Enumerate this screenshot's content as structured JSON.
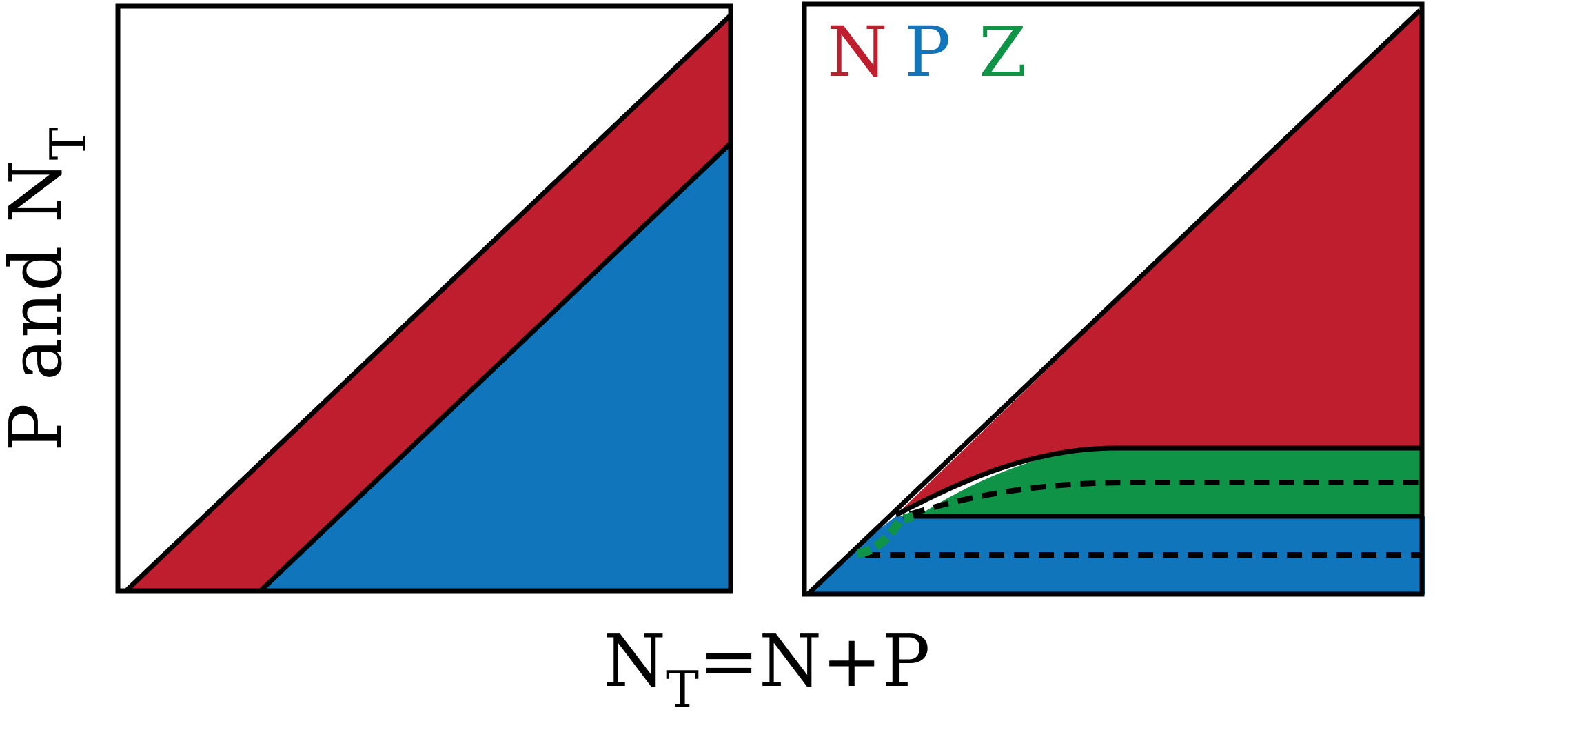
{
  "y_axis_label": {
    "main": "P and N",
    "sub": "T"
  },
  "x_axis_label": {
    "n": "N",
    "sub": "T",
    "rest": "=N+P"
  },
  "legend": [
    {
      "letter": "N",
      "color": "#be1e2d"
    },
    {
      "letter": "P",
      "color": "#1175bb"
    },
    {
      "letter": "Z",
      "color": "#0e9347"
    }
  ],
  "colors": {
    "N": "#be1e2d",
    "P": "#1175bb",
    "Z": "#0e9347",
    "frame": "#000000"
  }
}
